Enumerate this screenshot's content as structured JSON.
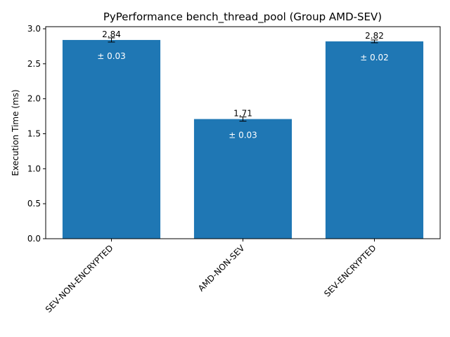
{
  "chart_data": {
    "type": "bar",
    "title": "PyPerformance bench_thread_pool (Group AMD-SEV)",
    "xlabel": "",
    "ylabel": "Execution Time (ms)",
    "ylim": [
      0,
      3.03
    ],
    "yticks": [
      "0.0",
      "0.5",
      "1.0",
      "1.5",
      "2.0",
      "2.5",
      "3.0"
    ],
    "ytick_values": [
      0,
      0.5,
      1.0,
      1.5,
      2.0,
      2.5,
      3.0
    ],
    "categories": [
      "SEV-NON-ENCRYPTED",
      "AMD-NON-SEV",
      "SEV-ENCRYPTED"
    ],
    "values": [
      2.84,
      1.71,
      2.82
    ],
    "errors": [
      0.03,
      0.03,
      0.02
    ],
    "value_labels": [
      "2.84",
      "1.71",
      "2.82"
    ],
    "error_labels": [
      "± 0.03",
      "± 0.03",
      "± 0.02"
    ],
    "bar_color": "#1f77b4",
    "grid": false,
    "legend": "none"
  }
}
